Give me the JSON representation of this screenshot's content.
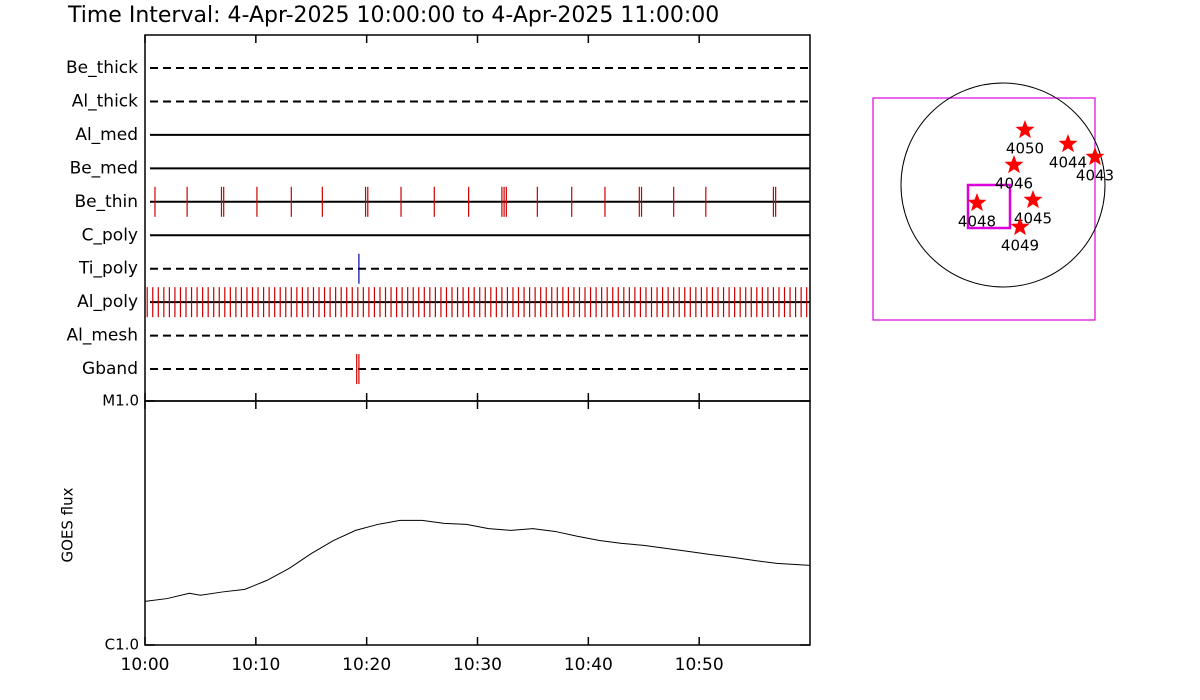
{
  "chart_data": [
    {
      "type": "timeline",
      "title": "Time Interval:  4-Apr-2025 10:00:00 to  4-Apr-2025 11:00:00",
      "xlim": [
        0,
        60
      ],
      "xticks": [
        {
          "value": 0,
          "label": "10:00"
        },
        {
          "value": 10,
          "label": "10:10"
        },
        {
          "value": 20,
          "label": "10:20"
        },
        {
          "value": 30,
          "label": "10:30"
        },
        {
          "value": 40,
          "label": "10:40"
        },
        {
          "value": 50,
          "label": "10:50"
        }
      ],
      "rows": [
        {
          "name": "Be_thick",
          "line_style": "dashed",
          "color": "#cc0000",
          "events": []
        },
        {
          "name": "Al_thick",
          "line_style": "dashed",
          "color": "#cc0000",
          "events": []
        },
        {
          "name": "Al_med",
          "line_style": "solid",
          "color": "#cc0000",
          "events": []
        },
        {
          "name": "Be_med",
          "line_style": "solid",
          "color": "#cc0000",
          "events": []
        },
        {
          "name": "Be_thin",
          "line_style": "solid",
          "color": "#cc0000",
          "events": [
            0.9,
            3.8,
            6.9,
            7.1,
            10.1,
            13.2,
            16.0,
            19.9,
            20.1,
            23.1,
            26.1,
            29.2,
            32.2,
            32.4,
            32.6,
            35.4,
            38.5,
            41.5,
            44.6,
            44.8,
            47.7,
            50.6,
            56.7,
            56.9
          ]
        },
        {
          "name": "C_poly",
          "line_style": "solid",
          "color": "#cc0000",
          "events": []
        },
        {
          "name": "Ti_poly",
          "line_style": "dashed",
          "color": "#0000aa",
          "events": [
            19.3
          ]
        },
        {
          "name": "Al_poly",
          "line_style": "solid",
          "color": "#cc0000",
          "events": [
            0.2,
            0.7,
            1.2,
            1.7,
            2.2,
            2.7,
            3.2,
            3.7,
            4.2,
            4.7,
            5.2,
            5.7,
            6.2,
            6.7,
            7.2,
            7.7,
            8.2,
            8.7,
            9.2,
            9.7,
            10.2,
            10.7,
            11.2,
            11.7,
            12.2,
            12.7,
            13.2,
            13.7,
            14.2,
            14.7,
            15.2,
            15.7,
            16.2,
            16.7,
            17.2,
            17.7,
            18.2,
            18.7,
            19.2,
            19.7,
            20.2,
            20.7,
            21.2,
            21.7,
            22.2,
            22.7,
            23.2,
            23.7,
            24.2,
            24.7,
            25.2,
            25.7,
            26.2,
            26.7,
            27.2,
            27.7,
            28.2,
            28.7,
            29.2,
            29.7,
            30.2,
            30.7,
            31.2,
            31.7,
            32.2,
            32.7,
            33.2,
            33.7,
            34.2,
            34.7,
            35.2,
            35.7,
            36.2,
            36.7,
            37.2,
            37.7,
            38.2,
            38.7,
            39.2,
            39.7,
            40.2,
            40.7,
            41.2,
            41.7,
            42.2,
            42.7,
            43.2,
            43.7,
            44.2,
            44.7,
            45.2,
            45.7,
            46.2,
            46.7,
            47.2,
            47.7,
            48.2,
            48.7,
            49.2,
            49.7,
            50.2,
            50.7,
            51.2,
            51.7,
            52.2,
            52.7,
            53.2,
            53.7,
            54.2,
            54.7,
            55.2,
            55.7,
            56.2,
            56.7,
            57.2,
            57.7,
            58.2,
            58.7,
            59.2,
            59.7
          ]
        },
        {
          "name": "Al_mesh",
          "line_style": "dashed",
          "color": "#cc0000",
          "events": []
        },
        {
          "name": "Gband",
          "line_style": "dashed",
          "color": "#cc0000",
          "events": [
            19.1,
            19.3
          ]
        }
      ]
    },
    {
      "type": "line",
      "ylabel": "GOES flux",
      "log_scale": true,
      "color": "#000000",
      "xlim": [
        0,
        60
      ],
      "ylim": [
        1e-06,
        1e-05
      ],
      "yticks": [
        {
          "value": 1e-06,
          "label": "C1.0"
        },
        {
          "value": 1e-05,
          "label": "M1.0"
        }
      ],
      "x": [
        0,
        2,
        4,
        5,
        7,
        9,
        11,
        13,
        15,
        17,
        19,
        21,
        23,
        25,
        27,
        29,
        31,
        33,
        35,
        37,
        39,
        41,
        43,
        45,
        47,
        49,
        51,
        53,
        55,
        57,
        60
      ],
      "values": [
        1.51e-06,
        1.55e-06,
        1.63e-06,
        1.6e-06,
        1.65e-06,
        1.69e-06,
        1.84e-06,
        2.06e-06,
        2.37e-06,
        2.68e-06,
        2.95e-06,
        3.12e-06,
        3.24e-06,
        3.24e-06,
        3.15e-06,
        3.12e-06,
        3e-06,
        2.95e-06,
        3e-06,
        2.92e-06,
        2.79e-06,
        2.68e-06,
        2.61e-06,
        2.56e-06,
        2.49e-06,
        2.42e-06,
        2.35e-06,
        2.29e-06,
        2.22e-06,
        2.16e-06,
        2.12e-06
      ]
    }
  ],
  "map": {
    "regions": [
      {
        "label": "4050"
      },
      {
        "label": "4044"
      },
      {
        "label": "4043"
      },
      {
        "label": "4046"
      },
      {
        "label": "4045"
      },
      {
        "label": "4048"
      },
      {
        "label": "4049"
      }
    ]
  }
}
